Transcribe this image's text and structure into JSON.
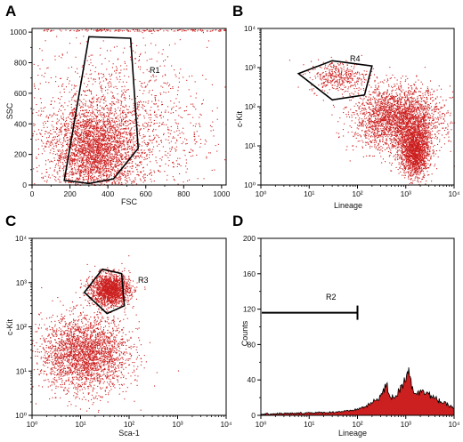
{
  "chart_data": [
    {
      "panel": "A",
      "type": "scatter",
      "xlabel": "FSC",
      "ylabel": "SSC",
      "xscale": "linear",
      "yscale": "linear",
      "xlim": [
        0,
        1024
      ],
      "ylim": [
        0,
        1024
      ],
      "x_ticks": [
        "0",
        "200",
        "400",
        "600",
        "800",
        "1000"
      ],
      "y_ticks": [
        "0",
        "200",
        "400",
        "600",
        "800",
        "1000"
      ],
      "point_color": "#cc1f1f",
      "clusters": [
        {
          "mean_x": 330,
          "mean_y": 230,
          "sd_x": 110,
          "sd_y": 140
        },
        {
          "mean_x": 420,
          "mean_y": 380,
          "sd_x": 250,
          "sd_y": 260
        }
      ],
      "gates": [
        {
          "name": "R1",
          "points": [
            [
              170,
              30
            ],
            [
              300,
              970
            ],
            [
              520,
              960
            ],
            [
              560,
              240
            ],
            [
              430,
              40
            ],
            [
              300,
              10
            ]
          ]
        }
      ],
      "grid": false,
      "legend": "none"
    },
    {
      "panel": "B",
      "type": "scatter",
      "xlabel": "Lineage",
      "ylabel": "c-Kit",
      "xscale": "log",
      "yscale": "log",
      "xlim": [
        1,
        10000
      ],
      "ylim": [
        1,
        10000
      ],
      "x_ticks": [
        "10⁰",
        "10¹",
        "10²",
        "10³",
        "10⁴"
      ],
      "y_ticks": [
        "10⁰",
        "10¹",
        "10²",
        "10³",
        "10⁴"
      ],
      "point_color": "#cc1f1f",
      "clusters": [
        {
          "mean_x": 700,
          "mean_y": 50,
          "sd_x": 0.45,
          "sd_y": 0.4
        },
        {
          "mean_x": 1500,
          "mean_y": 8,
          "sd_x": 0.15,
          "sd_y": 0.35
        },
        {
          "mean_x": 40,
          "mean_y": 600,
          "sd_x": 0.3,
          "sd_y": 0.2
        }
      ],
      "gates": [
        {
          "name": "R4",
          "points": [
            [
              6,
              700
            ],
            [
              30,
              1500
            ],
            [
              200,
              1100
            ],
            [
              140,
              200
            ],
            [
              30,
              150
            ]
          ]
        }
      ],
      "grid": false,
      "legend": "none"
    },
    {
      "panel": "C",
      "type": "scatter",
      "xlabel": "Sca-1",
      "ylabel": "c-Kit",
      "xscale": "log",
      "yscale": "log",
      "xlim": [
        1,
        10000
      ],
      "ylim": [
        1,
        10000
      ],
      "x_ticks": [
        "10⁰",
        "10¹",
        "10²",
        "10³",
        "10⁴"
      ],
      "y_ticks": [
        "10⁰",
        "10¹",
        "10²",
        "10³",
        "10⁴"
      ],
      "point_color": "#cc1f1f",
      "clusters": [
        {
          "mean_x": 12,
          "mean_y": 25,
          "sd_x": 0.45,
          "sd_y": 0.42
        },
        {
          "mean_x": 40,
          "mean_y": 700,
          "sd_x": 0.2,
          "sd_y": 0.18
        }
      ],
      "gates": [
        {
          "name": "R3",
          "points": [
            [
              12,
              600
            ],
            [
              28,
              2000
            ],
            [
              70,
              1600
            ],
            [
              80,
              300
            ],
            [
              35,
              200
            ]
          ]
        }
      ],
      "grid": false,
      "legend": "none"
    },
    {
      "panel": "D",
      "type": "area",
      "xlabel": "Lineage",
      "ylabel": "Counts",
      "xscale": "log",
      "yscale": "linear",
      "xlim": [
        1,
        10000
      ],
      "ylim": [
        0,
        200
      ],
      "x_ticks": [
        "10⁰",
        "10¹",
        "10²",
        "10³",
        "10⁴"
      ],
      "y_ticks": [
        "0",
        "40",
        "80",
        "120",
        "160",
        "200"
      ],
      "fill_color": "#cc1f1f",
      "x": [
        1,
        2,
        5,
        10,
        20,
        40,
        70,
        100,
        150,
        200,
        250,
        300,
        350,
        400,
        450,
        500,
        600,
        700,
        800,
        900,
        1000,
        1100,
        1200,
        1300,
        1500,
        1800,
        2200,
        2800,
        3500,
        4500,
        6000,
        8000,
        10000
      ],
      "values": [
        1,
        2,
        2,
        3,
        3,
        4,
        5,
        7,
        10,
        14,
        18,
        22,
        28,
        34,
        25,
        20,
        22,
        26,
        30,
        38,
        44,
        55,
        48,
        35,
        28,
        24,
        30,
        26,
        20,
        18,
        14,
        11,
        8
      ],
      "markers": [
        {
          "name": "R2",
          "x_range": [
            1,
            100
          ],
          "y": 116
        }
      ],
      "grid": false,
      "legend": "none"
    }
  ]
}
